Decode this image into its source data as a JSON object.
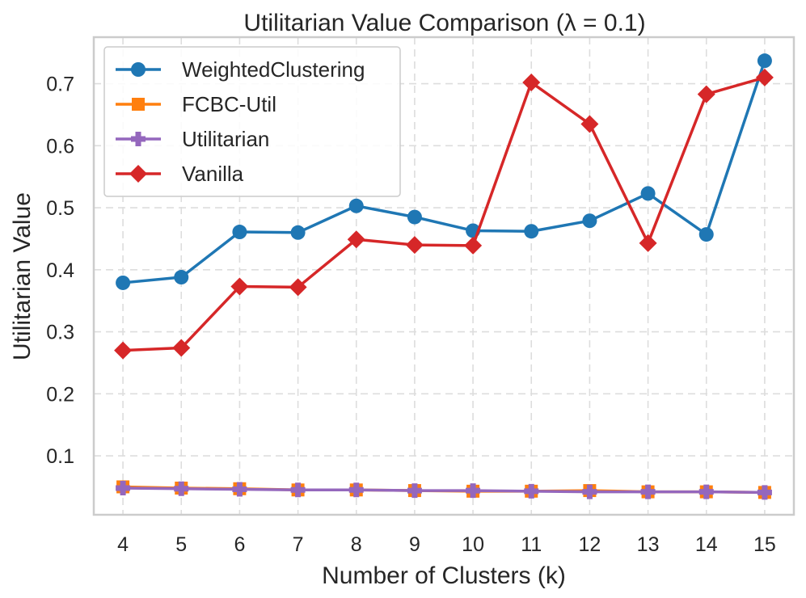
{
  "chart_data": {
    "type": "line",
    "title": "Utilitarian Value Comparison (λ = 0.1)",
    "xlabel": "Number of Clusters (k)",
    "ylabel": "Utilitarian Value",
    "x": [
      4,
      5,
      6,
      7,
      8,
      9,
      10,
      11,
      12,
      13,
      14,
      15
    ],
    "xlim": [
      3.5,
      15.5
    ],
    "ylim": [
      0.005,
      0.775
    ],
    "yticks": [
      0.1,
      0.2,
      0.3,
      0.4,
      0.5,
      0.6,
      0.7
    ],
    "ytick_labels": [
      "0.1",
      "0.2",
      "0.3",
      "0.4",
      "0.5",
      "0.6",
      "0.7"
    ],
    "xtick_labels": [
      "4",
      "5",
      "6",
      "7",
      "8",
      "9",
      "10",
      "11",
      "12",
      "13",
      "14",
      "15"
    ],
    "grid": true,
    "legend_position": "top-left",
    "series": [
      {
        "name": "WeightedClustering",
        "color": "#1f77b4",
        "marker": "circle",
        "values": [
          0.379,
          0.388,
          0.461,
          0.46,
          0.503,
          0.485,
          0.463,
          0.462,
          0.479,
          0.523,
          0.457,
          0.737
        ]
      },
      {
        "name": "FCBC-Util",
        "color": "#ff7f0e",
        "marker": "square",
        "values": [
          0.05,
          0.048,
          0.047,
          0.045,
          0.045,
          0.044,
          0.043,
          0.043,
          0.044,
          0.042,
          0.042,
          0.041
        ]
      },
      {
        "name": "Utilitarian",
        "color": "#9467bd",
        "marker": "plus",
        "values": [
          0.048,
          0.047,
          0.046,
          0.045,
          0.045,
          0.044,
          0.044,
          0.043,
          0.042,
          0.042,
          0.042,
          0.041
        ]
      },
      {
        "name": "Vanilla",
        "color": "#d62728",
        "marker": "diamond",
        "values": [
          0.27,
          0.274,
          0.373,
          0.372,
          0.449,
          0.44,
          0.439,
          0.702,
          0.635,
          0.443,
          0.683,
          0.71
        ]
      }
    ]
  }
}
